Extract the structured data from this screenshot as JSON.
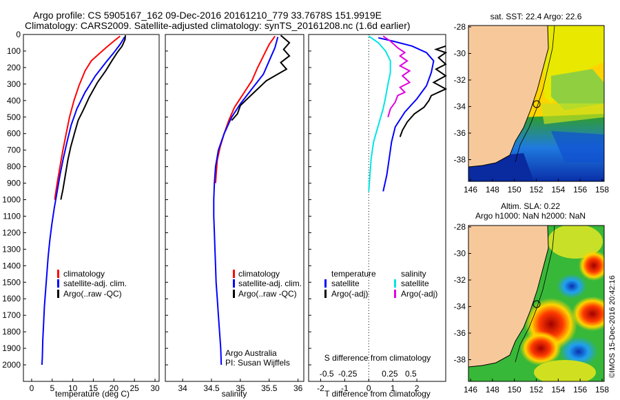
{
  "header": {
    "line1": "Argo profile: CS 5905167_162 09-Dec-2016 20161210_779 33.7678S 151.9919E",
    "line2": "Climatology: CARS2009. Satellite-adjusted climatology: synTS_20161208.nc (1.6d earlier)"
  },
  "colors": {
    "climatology": "#ff0000",
    "satellite": "#0000ff",
    "argo": "#000000",
    "salinity_satellite": "#00e5e5",
    "salinity_argo": "#e000e0",
    "land": "#f7c99a"
  },
  "chart_data": [
    {
      "type": "line",
      "panel": "temperature",
      "xlabel": "temperature (deg C)",
      "xlim": [
        -2,
        31
      ],
      "ylim": [
        2100,
        0
      ],
      "xticks": [
        0,
        5,
        10,
        15,
        20,
        25,
        30
      ],
      "yticks": [
        0,
        100,
        200,
        300,
        400,
        500,
        600,
        700,
        800,
        900,
        1000,
        1100,
        1200,
        1300,
        1400,
        1500,
        1600,
        1700,
        1800,
        1900,
        2000
      ],
      "legend": [
        "climatology",
        "satellite-adj. clim.",
        "Argo(..raw -QC)"
      ],
      "series": [
        {
          "name": "climatology",
          "color": "#ff0000",
          "points": [
            [
              21.5,
              10
            ],
            [
              20,
              40
            ],
            [
              18.3,
              75
            ],
            [
              16.5,
              115
            ],
            [
              14.5,
              160
            ],
            [
              13,
              220
            ],
            [
              11.5,
              310
            ],
            [
              10.3,
              400
            ],
            [
              9.2,
              500
            ],
            [
              8.4,
              600
            ],
            [
              7.6,
              700
            ],
            [
              6.9,
              800
            ],
            [
              6.2,
              900
            ],
            [
              5.6,
              1000
            ]
          ]
        },
        {
          "name": "satellite-adj. clim.",
          "color": "#0000ff",
          "points": [
            [
              22.6,
              15
            ],
            [
              21.5,
              60
            ],
            [
              20,
              110
            ],
            [
              18,
              170
            ],
            [
              15.5,
              250
            ],
            [
              13,
              350
            ],
            [
              11,
              450
            ],
            [
              9.6,
              550
            ],
            [
              8.6,
              650
            ],
            [
              7.7,
              750
            ],
            [
              6.9,
              850
            ],
            [
              6.2,
              950
            ],
            [
              5.5,
              1050
            ],
            [
              4.9,
              1150
            ],
            [
              4.4,
              1250
            ],
            [
              4,
              1350
            ],
            [
              3.7,
              1450
            ],
            [
              3.4,
              1550
            ],
            [
              3.1,
              1650
            ],
            [
              2.9,
              1750
            ],
            [
              2.7,
              1850
            ],
            [
              2.6,
              1950
            ],
            [
              2.5,
              2000
            ]
          ]
        },
        {
          "name": "Argo(..raw -QC)",
          "color": "#000000",
          "points": [
            [
              22.8,
              5
            ],
            [
              22.7,
              30
            ],
            [
              22,
              70
            ],
            [
              20.8,
              110
            ],
            [
              19.5,
              160
            ],
            [
              18,
              220
            ],
            [
              16,
              290
            ],
            [
              14,
              380
            ],
            [
              12.5,
              460
            ],
            [
              11.3,
              520
            ],
            [
              10.4,
              600
            ],
            [
              9.5,
              680
            ],
            [
              8.8,
              760
            ],
            [
              8.2,
              850
            ],
            [
              7.6,
              940
            ],
            [
              7.1,
              1000
            ]
          ]
        }
      ]
    },
    {
      "type": "line",
      "panel": "salinity",
      "xlabel": "salinity",
      "xlim": [
        33.7,
        36.1
      ],
      "ylim": [
        2100,
        0
      ],
      "xticks": [
        34,
        34.5,
        35,
        35.5,
        36
      ],
      "legend": [
        "climatology",
        "satellite-adj. clim.",
        "Argo(..raw -QC)"
      ],
      "annotation": [
        "Argo Australia",
        "PI: Susan Wijffels"
      ],
      "series": [
        {
          "name": "climatology",
          "color": "#ff0000",
          "points": [
            [
              35.6,
              10
            ],
            [
              35.5,
              60
            ],
            [
              35.4,
              130
            ],
            [
              35.3,
              200
            ],
            [
              35.2,
              280
            ],
            [
              35.05,
              360
            ],
            [
              34.9,
              440
            ],
            [
              34.8,
              520
            ],
            [
              34.72,
              600
            ],
            [
              34.65,
              680
            ],
            [
              34.6,
              760
            ],
            [
              34.58,
              850
            ],
            [
              34.57,
              900
            ]
          ]
        },
        {
          "name": "satellite-adj. clim.",
          "color": "#0000ff",
          "points": [
            [
              35.65,
              15
            ],
            [
              35.6,
              80
            ],
            [
              35.5,
              160
            ],
            [
              35.4,
              240
            ],
            [
              35.2,
              330
            ],
            [
              35,
              420
            ],
            [
              34.85,
              500
            ],
            [
              34.72,
              600
            ],
            [
              34.62,
              700
            ],
            [
              34.57,
              800
            ],
            [
              34.55,
              900
            ],
            [
              34.54,
              1000
            ],
            [
              34.54,
              1100
            ],
            [
              34.55,
              1200
            ],
            [
              34.56,
              1300
            ],
            [
              34.57,
              1400
            ],
            [
              34.58,
              1500
            ],
            [
              34.6,
              1600
            ],
            [
              34.62,
              1700
            ],
            [
              34.64,
              1800
            ],
            [
              34.66,
              1900
            ],
            [
              34.67,
              2000
            ]
          ]
        },
        {
          "name": "Argo(..raw -QC)",
          "color": "#000000",
          "points": [
            [
              35.7,
              5
            ],
            [
              35.85,
              50
            ],
            [
              35.75,
              90
            ],
            [
              35.85,
              130
            ],
            [
              35.7,
              170
            ],
            [
              35.8,
              210
            ],
            [
              35.6,
              250
            ],
            [
              35.45,
              280
            ],
            [
              35.3,
              330
            ],
            [
              35.15,
              380
            ],
            [
              35,
              430
            ],
            [
              34.95,
              480
            ],
            [
              34.85,
              520
            ]
          ]
        }
      ]
    },
    {
      "type": "line",
      "panel": "difference",
      "xlabel": "T difference from climatology",
      "xlabel2": "S difference from climatology",
      "xlim": [
        -2.5,
        3.2
      ],
      "ylim": [
        2100,
        0
      ],
      "xticks": [
        -2,
        -1,
        0,
        1,
        2
      ],
      "xticklabels": [
        "-2",
        "-1",
        "0",
        "1",
        "2"
      ],
      "xticks2": [
        -1.75,
        -0.875,
        0.875,
        1.75
      ],
      "xticklabels2": [
        "-0.5",
        "-0.25",
        "0.25",
        "0.5"
      ],
      "legend_temperature": [
        "temperature",
        "satellite",
        "Argo(-adj)"
      ],
      "legend_salinity": [
        "salinity",
        "satellite",
        "Argo(-adj)"
      ],
      "series": [
        {
          "name": "satellite",
          "group": "temperature",
          "color": "#0000ff",
          "points": [
            [
              0.4,
              20
            ],
            [
              1,
              40
            ],
            [
              1.8,
              70
            ],
            [
              2.4,
              110
            ],
            [
              2.7,
              160
            ],
            [
              2.6,
              230
            ],
            [
              2.4,
              310
            ],
            [
              2,
              390
            ],
            [
              1.5,
              470
            ],
            [
              1.1,
              560
            ],
            [
              0.95,
              650
            ],
            [
              0.85,
              750
            ],
            [
              0.75,
              850
            ],
            [
              0.6,
              950
            ]
          ]
        },
        {
          "name": "Argo(-adj)",
          "group": "temperature",
          "color": "#000000",
          "points": [
            [
              3.2,
              70
            ],
            [
              2.8,
              90
            ],
            [
              3.2,
              110
            ],
            [
              2.9,
              140
            ],
            [
              3.2,
              180
            ],
            [
              2.8,
              210
            ],
            [
              3.2,
              250
            ],
            [
              2.7,
              290
            ],
            [
              3.2,
              330
            ],
            [
              2.6,
              370
            ],
            [
              2.5,
              400
            ],
            [
              2.3,
              440
            ],
            [
              1.9,
              480
            ],
            [
              1.6,
              530
            ],
            [
              1.4,
              580
            ],
            [
              1.3,
              620
            ]
          ]
        },
        {
          "name": "satellite",
          "group": "salinity",
          "color": "#00e5e5",
          "points": [
            [
              0,
              10
            ],
            [
              0.4,
              50
            ],
            [
              0.7,
              100
            ],
            [
              0.9,
              160
            ],
            [
              0.9,
              230
            ],
            [
              0.8,
              300
            ],
            [
              0.7,
              380
            ],
            [
              0.6,
              450
            ],
            [
              0.4,
              550
            ],
            [
              0.2,
              650
            ],
            [
              0.1,
              750
            ],
            [
              0.05,
              850
            ],
            [
              0,
              950
            ]
          ]
        },
        {
          "name": "Argo(-adj)",
          "group": "salinity",
          "color": "#e000e0",
          "points": [
            [
              0.6,
              10
            ],
            [
              0.9,
              40
            ],
            [
              1.2,
              80
            ],
            [
              1.5,
              110
            ],
            [
              1.3,
              130
            ],
            [
              1.6,
              160
            ],
            [
              1.3,
              190
            ],
            [
              1.7,
              220
            ],
            [
              1.4,
              250
            ],
            [
              1.7,
              290
            ],
            [
              1.3,
              320
            ],
            [
              1.5,
              350
            ],
            [
              1.2,
              370
            ],
            [
              1.1,
              410
            ],
            [
              0.9,
              450
            ],
            [
              0.8,
              500
            ]
          ]
        }
      ]
    }
  ],
  "maps": [
    {
      "title": "sat. SST: 22.4 Argo: 22.6",
      "xticks": [
        "146",
        "148",
        "150",
        "152",
        "154",
        "156",
        "158"
      ],
      "yticks": [
        "-28",
        "-30",
        "-32",
        "-34",
        "-36",
        "-38"
      ]
    },
    {
      "title1": "Altim. SLA: 0.22",
      "title2": "Argo h1000: NaN h2000: NaN",
      "xticks": [
        "146",
        "148",
        "150",
        "152",
        "154",
        "156",
        "158"
      ],
      "yticks": [
        "-28",
        "-30",
        "-32",
        "-34",
        "-36",
        "-38"
      ]
    }
  ],
  "credit": "©IMOS 15-Dec-2016 20:42:16"
}
